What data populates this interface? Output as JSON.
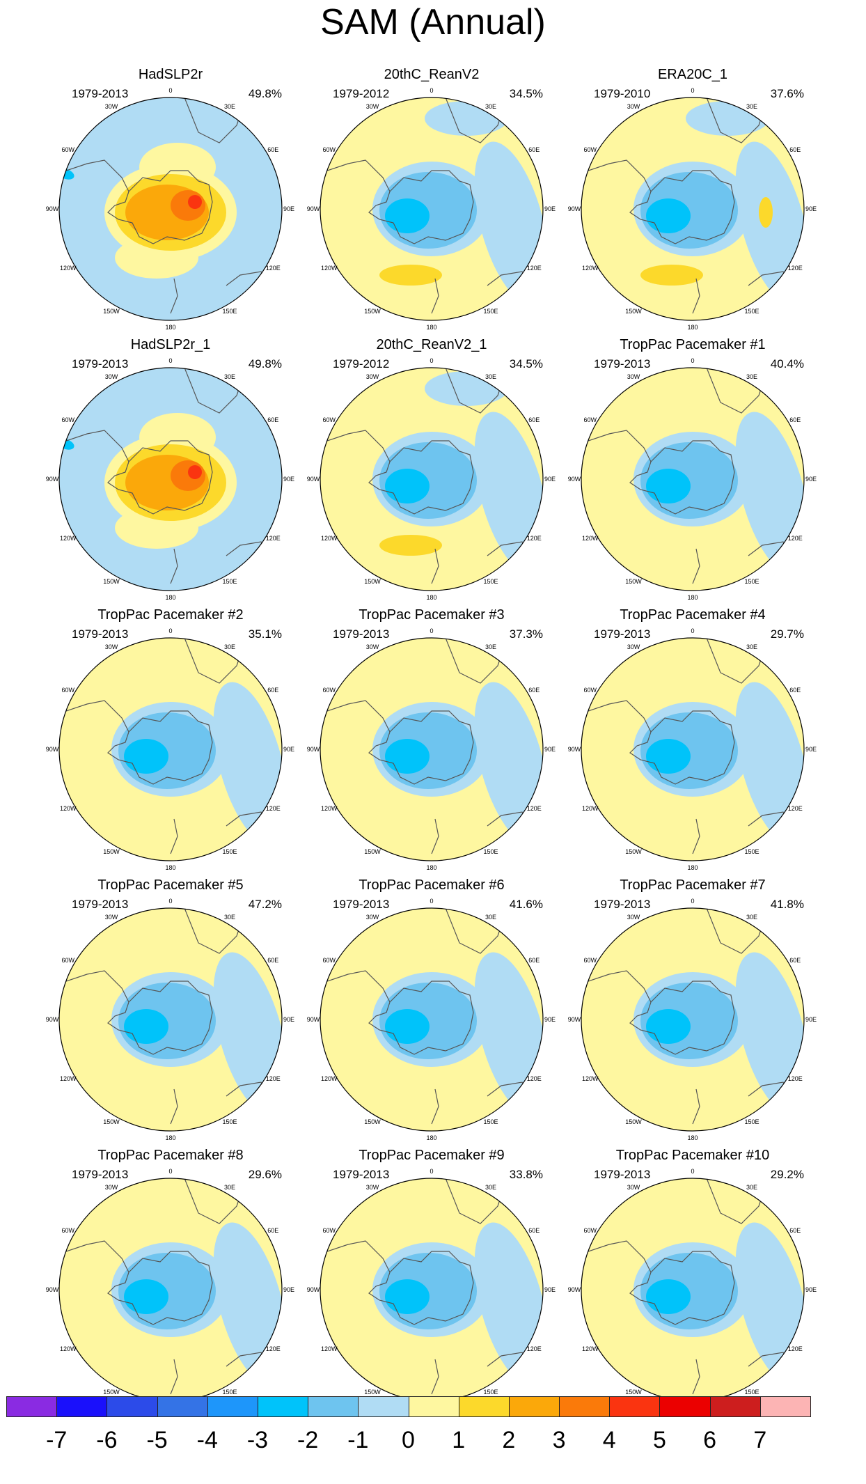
{
  "title": "SAM (Annual)",
  "colors": {
    "land_outline": "#555555",
    "level_neg3": "#00c3fa",
    "level_neg2": "#6ec4ef",
    "level_neg1": "#b0dcf4",
    "level_pos1": "#fef7a0",
    "level_pos2": "#fcd92b",
    "level_pos3": "#fba80a",
    "level_pos4": "#fa7a0a",
    "level_pos5": "#fa3410"
  },
  "lon_labels": {
    "l0": "0",
    "l30e": "30E",
    "l60e": "60E",
    "l90e": "90E",
    "l120e": "120E",
    "l150e": "150E",
    "l180": "180",
    "l150w": "150W",
    "l120w": "120W",
    "l90w": "90W",
    "l60w": "60W",
    "l30w": "30W"
  },
  "panels": [
    {
      "title": "HadSLP2r",
      "years": "1979-2013",
      "pct": "49.8%",
      "pattern": "obs"
    },
    {
      "title": "20thC_ReanV2",
      "years": "1979-2012",
      "pct": "34.5%",
      "pattern": "rean"
    },
    {
      "title": "ERA20C_1",
      "years": "1979-2010",
      "pct": "37.6%",
      "pattern": "era"
    },
    {
      "title": "HadSLP2r_1",
      "years": "1979-2013",
      "pct": "49.8%",
      "pattern": "obs"
    },
    {
      "title": "20thC_ReanV2_1",
      "years": "1979-2012",
      "pct": "34.5%",
      "pattern": "rean"
    },
    {
      "title": "TropPac Pacemaker #1",
      "years": "1979-2013",
      "pct": "40.4%",
      "pattern": "pm"
    },
    {
      "title": "TropPac Pacemaker #2",
      "years": "1979-2013",
      "pct": "35.1%",
      "pattern": "pm"
    },
    {
      "title": "TropPac Pacemaker #3",
      "years": "1979-2013",
      "pct": "37.3%",
      "pattern": "pm"
    },
    {
      "title": "TropPac Pacemaker #4",
      "years": "1979-2013",
      "pct": "29.7%",
      "pattern": "pm"
    },
    {
      "title": "TropPac Pacemaker #5",
      "years": "1979-2013",
      "pct": "47.2%",
      "pattern": "pm"
    },
    {
      "title": "TropPac Pacemaker #6",
      "years": "1979-2013",
      "pct": "41.6%",
      "pattern": "pm"
    },
    {
      "title": "TropPac Pacemaker #7",
      "years": "1979-2013",
      "pct": "41.8%",
      "pattern": "pm"
    },
    {
      "title": "TropPac Pacemaker #8",
      "years": "1979-2013",
      "pct": "29.6%",
      "pattern": "pm"
    },
    {
      "title": "TropPac Pacemaker #9",
      "years": "1979-2013",
      "pct": "33.8%",
      "pattern": "pm"
    },
    {
      "title": "TropPac Pacemaker #10",
      "years": "1979-2013",
      "pct": "29.2%",
      "pattern": "pm"
    }
  ],
  "colorbar": {
    "colors": [
      "#8a2be2",
      "#1a10fb",
      "#2c4be9",
      "#3473e6",
      "#1e96fa",
      "#00c3fa",
      "#6ec4ef",
      "#b0dcf4",
      "#fef7a0",
      "#fcd92b",
      "#fba80a",
      "#fa7a0a",
      "#fa3410",
      "#eb0000",
      "#cd1e1e",
      "#fcb4b4"
    ],
    "labels": [
      "-7",
      "-6",
      "-5",
      "-4",
      "-3",
      "-2",
      "-1",
      "0",
      "1",
      "2",
      "3",
      "4",
      "5",
      "6",
      "7"
    ]
  }
}
